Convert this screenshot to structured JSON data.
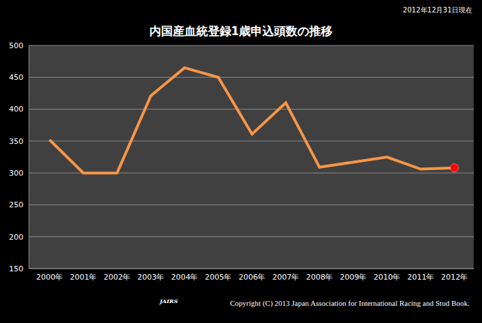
{
  "chart_data": {
    "type": "line",
    "title": "内国産血統登録1歳申込頭数の推移",
    "subtitle": "2012年12月31日現在",
    "annotations": [
      "Copyright (C) 2013 Japan Association for International Racing and Stud Book.",
      "JAIRS"
    ],
    "categories": [
      "2000年",
      "2001年",
      "2002年",
      "2003年",
      "2004年",
      "2005年",
      "2006年",
      "2007年",
      "2008年",
      "2009年",
      "2010年",
      "2011年",
      "2012年"
    ],
    "values": [
      352,
      300,
      300,
      421,
      465,
      450,
      361,
      410,
      309,
      317,
      325,
      306,
      308
    ],
    "color": "#f79646",
    "colors": [
      "#f79646",
      "#f79646",
      "#f79646",
      "#f79646",
      "#f79646",
      "#f79646",
      "#f79646",
      "#f79646",
      "#f79646",
      "#f79646",
      "#f79646",
      "#f79646",
      "#ff0000"
    ],
    "marker": "circle",
    "ylim": [
      150,
      500
    ],
    "yticks": [
      150,
      200,
      250,
      300,
      350,
      400,
      450,
      500
    ],
    "grid": true
  }
}
